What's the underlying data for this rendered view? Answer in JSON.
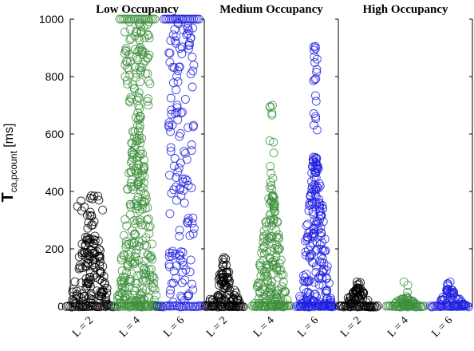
{
  "chart_data": {
    "type": "scatter",
    "ylabel": {
      "main": "T",
      "sub": "ca,pcount",
      "unit": " [ms]"
    },
    "ylim": [
      0,
      1000
    ],
    "yticks": [
      0,
      200,
      400,
      600,
      800,
      1000
    ],
    "grid": "vertical panel dividers only",
    "colors": {
      "L = 2": "#000000",
      "L = 4": "#3c8f3c",
      "L = 6": "#1f1fe0"
    },
    "panels": [
      {
        "title": "Low Occupancy",
        "categories": [
          "L = 2",
          "L = 4",
          "L = 6"
        ],
        "series": [
          {
            "category": "L = 2",
            "max": 385,
            "dense_upto": 330,
            "sparse_count": 10
          },
          {
            "category": "L = 4",
            "max": 1000,
            "dense_upto": 700,
            "sparse_count": 80
          },
          {
            "category": "L = 6",
            "max": 1000,
            "dense_upto": 0,
            "sparse_count": 140
          }
        ]
      },
      {
        "title": "Medium Occupancy",
        "categories": [
          "L = 2",
          "L = 4",
          "L = 6"
        ],
        "series": [
          {
            "category": "L = 2",
            "max": 170,
            "dense_upto": 140,
            "sparse_count": 6
          },
          {
            "category": "L = 4",
            "max": 700,
            "dense_upto": 400,
            "sparse_count": 14
          },
          {
            "category": "L = 6",
            "max": 905,
            "dense_upto": 520,
            "sparse_count": 18
          }
        ]
      },
      {
        "title": "High Occupancy",
        "categories": [
          "L = 2",
          "L = 4",
          "L = 6"
        ],
        "series": [
          {
            "category": "L = 2",
            "max": 85,
            "dense_upto": 65,
            "sparse_count": 3
          },
          {
            "category": "L = 4",
            "max": 85,
            "dense_upto": 30,
            "sparse_count": 3
          },
          {
            "category": "L = 6",
            "max": 85,
            "dense_upto": 60,
            "sparse_count": 3
          }
        ]
      }
    ]
  }
}
